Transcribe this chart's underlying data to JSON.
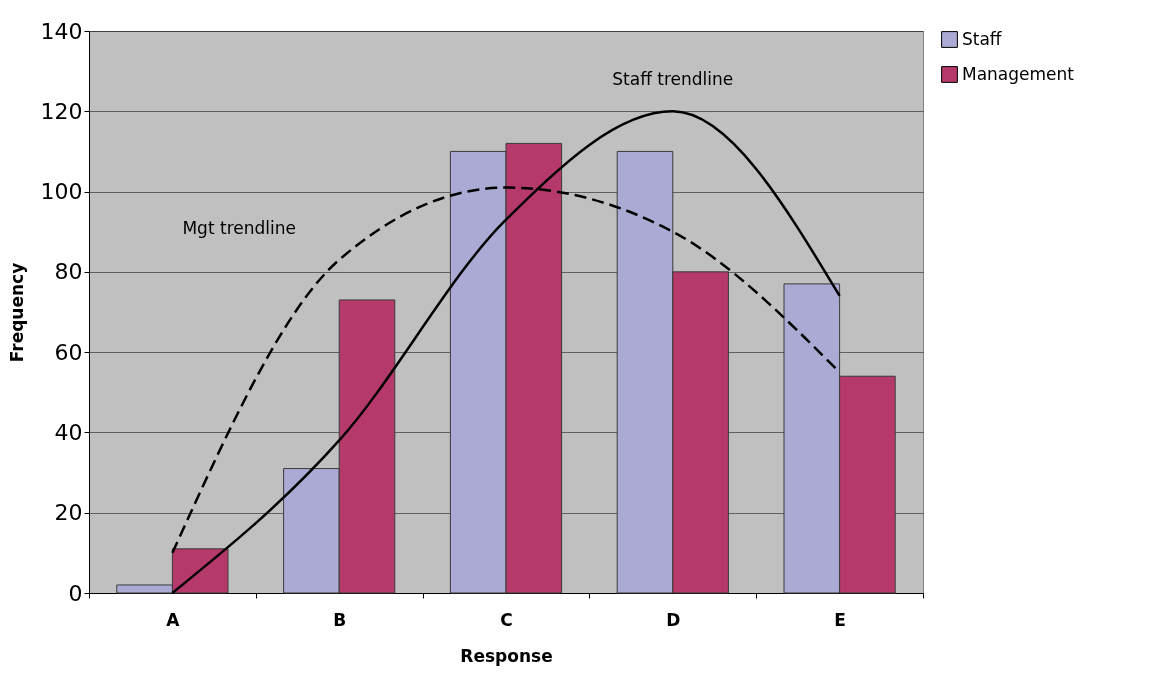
{
  "chart_data": {
    "type": "bar",
    "xlabel": "Response",
    "ylabel": "Frequency",
    "categories": [
      "A",
      "B",
      "C",
      "D",
      "E"
    ],
    "series": [
      {
        "name": "Staff",
        "color": "#aaaad4",
        "values": [
          2,
          31,
          110,
          110,
          77
        ]
      },
      {
        "name": "Management",
        "color": "#b5396a",
        "values": [
          11,
          73,
          112,
          80,
          54
        ]
      },
      {
        "name": "Staff trendline",
        "type": "line",
        "color": "#000000",
        "line_style": "solid",
        "values": [
          0,
          38,
          93,
          120,
          74
        ]
      },
      {
        "name": "Mgt trendline",
        "type": "line",
        "color": "#000000",
        "line_style": "dashed",
        "values": [
          10,
          83,
          101,
          90,
          55
        ]
      }
    ],
    "ylim": [
      0,
      140
    ],
    "yticks": [
      0,
      20,
      40,
      60,
      80,
      100,
      120,
      140
    ],
    "grid": "y",
    "legend": "right"
  }
}
